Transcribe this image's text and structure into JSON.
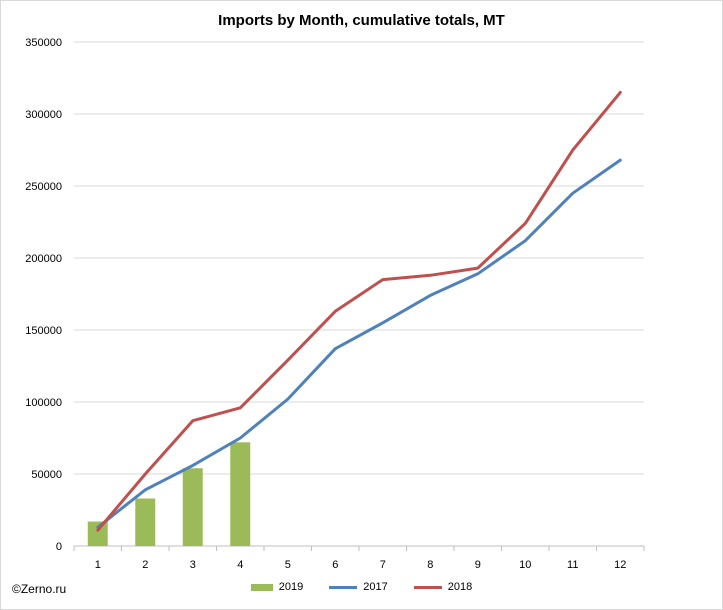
{
  "chart_data": {
    "type": "bar+line",
    "title": "Imports by Month, cumulative totals, MT",
    "xlabel": "",
    "ylabel": "",
    "categories": [
      "1",
      "2",
      "3",
      "4",
      "5",
      "6",
      "7",
      "8",
      "9",
      "10",
      "11",
      "12"
    ],
    "ylim": [
      0,
      350000
    ],
    "yticks": [
      0,
      50000,
      100000,
      150000,
      200000,
      250000,
      300000,
      350000
    ],
    "ytick_labels": [
      "0",
      "50000",
      "100000",
      "150000",
      "200000",
      "250000",
      "300000",
      "350000"
    ],
    "grid": true,
    "legend_position": "bottom",
    "series": [
      {
        "name": "2019",
        "type": "bar",
        "color": "#9bbb59",
        "values": [
          17000,
          33000,
          54000,
          72000,
          null,
          null,
          null,
          null,
          null,
          null,
          null,
          null
        ]
      },
      {
        "name": "2017",
        "type": "line",
        "color": "#4f81bd",
        "values": [
          13000,
          39000,
          56000,
          75000,
          102000,
          137000,
          155000,
          174000,
          189000,
          212000,
          245000,
          268000
        ]
      },
      {
        "name": "2018",
        "type": "line",
        "color": "#c0504d",
        "values": [
          11000,
          50000,
          87000,
          96000,
          129000,
          163000,
          185000,
          188000,
          193000,
          224000,
          275000,
          315000
        ]
      }
    ]
  },
  "credit": "©Zerno.ru"
}
